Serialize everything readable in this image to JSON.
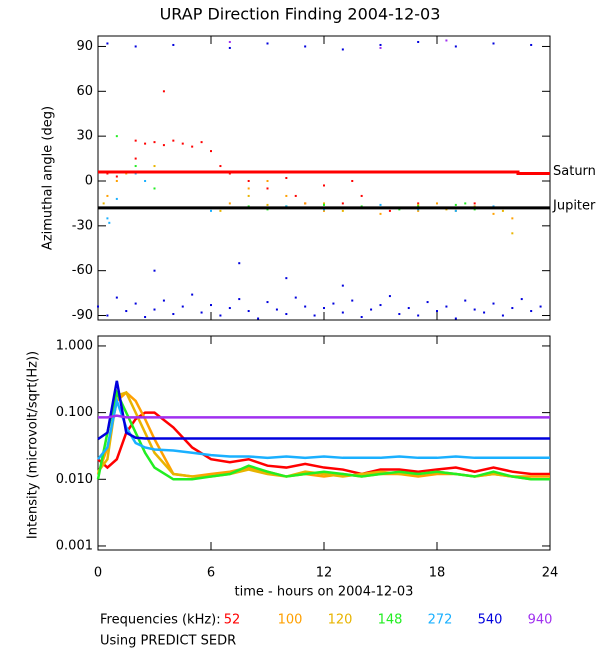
{
  "chart_data": [
    {
      "type": "scatter",
      "title": "URAP Direction Finding  2004-12-03",
      "y_label": "Azimuthal angle (deg)",
      "xlim": [
        0,
        24
      ],
      "ylim": [
        -93,
        97
      ],
      "yticks": [
        -90,
        -60,
        -30,
        0,
        30,
        60,
        90
      ],
      "grid": false,
      "series": [
        {
          "color": "#ff0000",
          "x": [
            2,
            2.5,
            3,
            3.5,
            4,
            4.5,
            5,
            5.5,
            6,
            6.5,
            7,
            8,
            9,
            10,
            10.5,
            11,
            12,
            13,
            13.5,
            14,
            15.5,
            17,
            19,
            20,
            21,
            22,
            0.5,
            1,
            2,
            3.5
          ],
          "values": [
            27,
            25,
            26,
            24,
            27,
            25,
            23,
            26,
            20,
            10,
            5,
            0,
            -5,
            2,
            -10,
            -15,
            -3,
            -15,
            0,
            -10,
            -20,
            -15,
            -18,
            -15,
            -18,
            -18,
            5,
            3,
            15,
            60
          ]
        },
        {
          "color": "#ffa000",
          "x": [
            0.5,
            1,
            6,
            7,
            8,
            9,
            10,
            11,
            12,
            13,
            15,
            16,
            17,
            18,
            19,
            20,
            21,
            22
          ],
          "values": [
            -10,
            0,
            -18,
            -15,
            -5,
            0,
            -10,
            -15,
            -20,
            -18,
            -22,
            -18,
            -20,
            -15,
            -20,
            -18,
            -22,
            -25
          ]
        },
        {
          "color": "#e8b400",
          "x": [
            0.3,
            1.5,
            3,
            6.5,
            8,
            9,
            10.5,
            12,
            13,
            15.5,
            17,
            18.5,
            20,
            21.5,
            22
          ],
          "values": [
            -15,
            5,
            10,
            -20,
            -10,
            -16,
            -18,
            -15,
            -20,
            -18,
            -16,
            -19,
            -17,
            -20,
            -35
          ]
        },
        {
          "color": "#22ee22",
          "x": [
            0.5,
            1,
            2,
            6,
            7,
            8,
            9,
            10,
            11,
            12,
            13,
            14,
            15,
            16,
            17,
            18,
            19,
            20,
            21,
            22,
            3,
            19.5
          ],
          "values": [
            -18,
            30,
            10,
            -18,
            -18,
            -17,
            -19,
            -17,
            -18,
            -16,
            -18,
            -17,
            -18,
            -19,
            -17,
            -18,
            -16,
            -19,
            -18,
            -18,
            -5,
            -15
          ]
        },
        {
          "color": "#1ab0ff",
          "x": [
            0.5,
            1,
            2,
            2.5,
            6,
            8,
            10,
            12,
            15,
            17,
            19,
            21,
            0.6
          ],
          "values": [
            -25,
            -12,
            5,
            0,
            -20,
            -18,
            -17,
            -19,
            -16,
            -19,
            -20,
            -17,
            -28
          ]
        },
        {
          "color": "#0000dd",
          "x": [
            0,
            0.5,
            1,
            1.5,
            2,
            2.5,
            3,
            3.5,
            4,
            4.5,
            5,
            5.5,
            6,
            6.5,
            7,
            7.5,
            8,
            8.5,
            9,
            9.5,
            10,
            10.5,
            11,
            11.5,
            12,
            12.5,
            13,
            13.5,
            14,
            14.5,
            15,
            15.5,
            16,
            16.5,
            17,
            17.5,
            18,
            18.5,
            19,
            19.5,
            20,
            20.5,
            21,
            21.5,
            22,
            22.5,
            23,
            23.5,
            0.5,
            2,
            4,
            7,
            9,
            11,
            13,
            15,
            17,
            19,
            21,
            23,
            7.5,
            10,
            13,
            3
          ],
          "values": [
            -84,
            -90,
            -78,
            -87,
            -82,
            -91,
            -86,
            -80,
            -89,
            -84,
            -76,
            -88,
            -83,
            -90,
            -85,
            -79,
            -87,
            -92,
            -81,
            -86,
            -89,
            -78,
            -84,
            -90,
            -85,
            -82,
            -88,
            -80,
            -91,
            -86,
            -83,
            -77,
            -89,
            -85,
            -90,
            -81,
            -87,
            -84,
            -92,
            -80,
            -86,
            -88,
            -82,
            -90,
            -85,
            -79,
            -87,
            -84,
            92,
            90,
            91,
            89,
            92,
            90,
            88,
            91,
            93,
            90,
            92,
            91,
            -55,
            -65,
            -70,
            -60
          ]
        },
        {
          "color": "#a030f0",
          "x": [
            7,
            15,
            18.5
          ],
          "values": [
            93,
            89,
            94
          ]
        },
        {
          "name": "Saturn",
          "line": true,
          "color": "#ff0000",
          "x": [
            0,
            22.3,
            22.3,
            24
          ],
          "values": [
            6,
            6,
            5,
            5
          ]
        },
        {
          "name": "Jupiter",
          "line": true,
          "color": "#000000",
          "x": [
            0,
            24
          ],
          "values": [
            -18,
            -18
          ]
        }
      ]
    },
    {
      "type": "line",
      "y_label": "Intensity (microvolt/sqrt(Hz))",
      "x_label": "time - hours on 2004-12-03",
      "legend_title": "Frequencies (kHz):",
      "note": "Using PREDICT SEDR",
      "log": true,
      "xlim": [
        0,
        24
      ],
      "ylim": [
        0.00087,
        1.41
      ],
      "xticks": [
        0,
        6,
        12,
        18,
        24
      ],
      "yticks": [
        {
          "value": 0.001,
          "label": "0.001"
        },
        {
          "value": 0.01,
          "label": "0.010"
        },
        {
          "value": 0.1,
          "label": "0.100"
        },
        {
          "value": 1,
          "label": "1.000"
        }
      ],
      "x": [
        0,
        0.5,
        1,
        1.5,
        2,
        2.5,
        3,
        4,
        5,
        6,
        7,
        8,
        9,
        10,
        11,
        12,
        13,
        14,
        15,
        16,
        17,
        18,
        19,
        20,
        21,
        22,
        23,
        24
      ],
      "series": [
        {
          "name": "52",
          "color": "#ff0000",
          "values": [
            0.02,
            0.015,
            0.02,
            0.05,
            0.08,
            0.1,
            0.1,
            0.06,
            0.03,
            0.02,
            0.018,
            0.02,
            0.016,
            0.015,
            0.017,
            0.015,
            0.014,
            0.012,
            0.014,
            0.014,
            0.013,
            0.014,
            0.015,
            0.013,
            0.015,
            0.013,
            0.012,
            0.012
          ]
        },
        {
          "name": "100",
          "color": "#ffa000",
          "values": [
            0.012,
            0.03,
            0.15,
            0.2,
            0.15,
            0.08,
            0.04,
            0.012,
            0.011,
            0.012,
            0.013,
            0.015,
            0.013,
            0.011,
            0.012,
            0.011,
            0.012,
            0.011,
            0.012,
            0.012,
            0.011,
            0.012,
            0.012,
            0.011,
            0.012,
            0.011,
            0.011,
            0.011
          ]
        },
        {
          "name": "120",
          "color": "#e8b400",
          "values": [
            0.013,
            0.02,
            0.18,
            0.2,
            0.1,
            0.05,
            0.025,
            0.012,
            0.011,
            0.011,
            0.012,
            0.014,
            0.012,
            0.011,
            0.013,
            0.012,
            0.011,
            0.012,
            0.013,
            0.012,
            0.012,
            0.013,
            0.012,
            0.011,
            0.012,
            0.011,
            0.01,
            0.01
          ]
        },
        {
          "name": "148",
          "color": "#22ee22",
          "values": [
            0.01,
            0.05,
            0.2,
            0.1,
            0.05,
            0.025,
            0.015,
            0.01,
            0.01,
            0.011,
            0.012,
            0.016,
            0.013,
            0.011,
            0.012,
            0.013,
            0.012,
            0.011,
            0.012,
            0.013,
            0.012,
            0.013,
            0.012,
            0.011,
            0.013,
            0.011,
            0.01,
            0.01
          ]
        },
        {
          "name": "272",
          "color": "#1ab0ff",
          "values": [
            0.02,
            0.03,
            0.15,
            0.06,
            0.035,
            0.03,
            0.028,
            0.027,
            0.025,
            0.023,
            0.022,
            0.022,
            0.021,
            0.022,
            0.021,
            0.022,
            0.021,
            0.021,
            0.021,
            0.022,
            0.021,
            0.021,
            0.022,
            0.021,
            0.021,
            0.021,
            0.021,
            0.021
          ]
        },
        {
          "name": "540",
          "color": "#0000dd",
          "values": [
            0.04,
            0.05,
            0.3,
            0.05,
            0.042,
            0.041,
            0.041,
            0.041,
            0.041,
            0.041,
            0.041,
            0.041,
            0.041,
            0.041,
            0.041,
            0.041,
            0.041,
            0.041,
            0.041,
            0.041,
            0.041,
            0.041,
            0.041,
            0.041,
            0.041,
            0.041,
            0.041,
            0.041
          ]
        },
        {
          "name": "940",
          "color": "#a030f0",
          "values": [
            0.085,
            0.085,
            0.09,
            0.085,
            0.085,
            0.085,
            0.085,
            0.085,
            0.085,
            0.085,
            0.085,
            0.085,
            0.085,
            0.085,
            0.085,
            0.085,
            0.085,
            0.085,
            0.085,
            0.085,
            0.085,
            0.085,
            0.085,
            0.085,
            0.085,
            0.085,
            0.085,
            0.085
          ]
        }
      ]
    }
  ]
}
